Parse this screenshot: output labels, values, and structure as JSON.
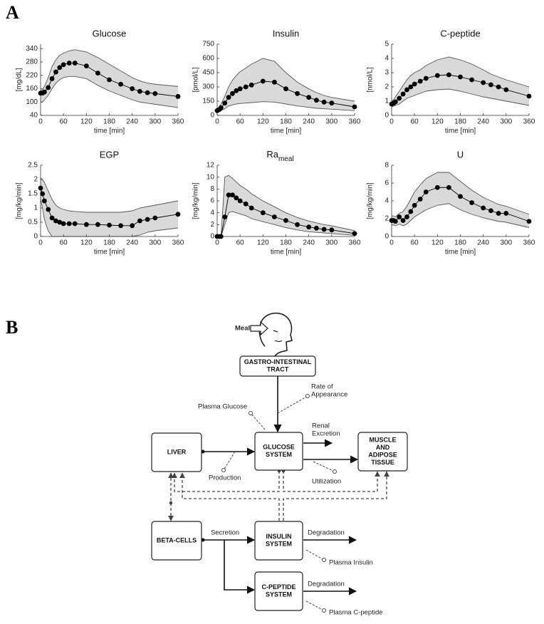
{
  "panel_labels": [
    "A",
    "B"
  ],
  "chart_data": [
    {
      "type": "band-line",
      "title": "Glucose",
      "xlabel": "time [min]",
      "ylabel": "[mg/dL]",
      "x": [
        0,
        5,
        10,
        20,
        30,
        40,
        50,
        60,
        75,
        90,
        120,
        150,
        180,
        210,
        240,
        260,
        280,
        300,
        360
      ],
      "series": [
        {
          "color": "#000000",
          "values": [
            140,
            140,
            145,
            165,
            205,
            235,
            255,
            268,
            275,
            275,
            262,
            230,
            200,
            180,
            160,
            148,
            142,
            138,
            125
          ]
        }
      ],
      "band": {
        "color": "#d9d9d9",
        "edge_color": "#555555",
        "upper": [
          150,
          155,
          170,
          210,
          260,
          290,
          310,
          320,
          330,
          335,
          325,
          300,
          270,
          240,
          210,
          195,
          185,
          180,
          170
        ],
        "lower": [
          100,
          100,
          110,
          130,
          160,
          185,
          200,
          210,
          215,
          215,
          205,
          175,
          150,
          130,
          110,
          100,
          95,
          90,
          75
        ]
      },
      "xlim": [
        0,
        360
      ],
      "xticks": [
        0,
        60,
        120,
        180,
        240,
        300,
        360
      ],
      "ylim": [
        40,
        360
      ],
      "yticks": [
        40,
        100,
        160,
        220,
        280,
        340
      ]
    },
    {
      "type": "band-line",
      "title": "Insulin",
      "xlabel": "time [min]",
      "ylabel": "[pmol/L]",
      "x": [
        0,
        5,
        10,
        20,
        30,
        40,
        50,
        60,
        75,
        90,
        120,
        150,
        180,
        210,
        240,
        260,
        280,
        300,
        360
      ],
      "series": [
        {
          "color": "#000000",
          "values": [
            50,
            60,
            80,
            130,
            190,
            230,
            260,
            280,
            300,
            320,
            360,
            350,
            280,
            230,
            190,
            160,
            140,
            130,
            90
          ]
        }
      ],
      "band": {
        "color": "#d9d9d9",
        "edge_color": "#555555",
        "upper": [
          70,
          90,
          120,
          200,
          300,
          370,
          420,
          460,
          500,
          540,
          600,
          570,
          450,
          350,
          280,
          240,
          210,
          190,
          150
        ],
        "lower": [
          30,
          40,
          50,
          70,
          100,
          110,
          120,
          125,
          130,
          135,
          145,
          140,
          120,
          100,
          85,
          75,
          70,
          65,
          50
        ]
      },
      "xlim": [
        0,
        360
      ],
      "xticks": [
        0,
        60,
        120,
        180,
        240,
        300,
        360
      ],
      "ylim": [
        0,
        750
      ],
      "yticks": [
        0,
        150,
        300,
        450,
        600,
        750
      ]
    },
    {
      "type": "band-line",
      "title": "C-peptide",
      "xlabel": "time [min]",
      "ylabel": "[nmol/L]",
      "x": [
        0,
        5,
        10,
        20,
        30,
        40,
        50,
        60,
        75,
        90,
        120,
        150,
        180,
        210,
        240,
        260,
        280,
        300,
        360
      ],
      "series": [
        {
          "color": "#000000",
          "values": [
            0.8,
            0.85,
            0.95,
            1.2,
            1.5,
            1.8,
            2.0,
            2.2,
            2.4,
            2.6,
            2.8,
            2.85,
            2.7,
            2.5,
            2.3,
            2.15,
            2.0,
            1.8,
            1.35
          ]
        }
      ],
      "band": {
        "color": "#d9d9d9",
        "edge_color": "#555555",
        "upper": [
          1.0,
          1.1,
          1.3,
          1.7,
          2.1,
          2.5,
          2.8,
          3.0,
          3.2,
          3.5,
          3.9,
          4.1,
          3.9,
          3.6,
          3.2,
          2.9,
          2.7,
          2.5,
          2.0
        ],
        "lower": [
          0.6,
          0.65,
          0.7,
          0.8,
          1.0,
          1.2,
          1.3,
          1.4,
          1.55,
          1.7,
          1.8,
          1.85,
          1.7,
          1.5,
          1.3,
          1.2,
          1.1,
          1.0,
          0.7
        ]
      },
      "xlim": [
        0,
        360
      ],
      "xticks": [
        0,
        60,
        120,
        180,
        240,
        300,
        360
      ],
      "ylim": [
        0,
        5
      ],
      "yticks": [
        0,
        1,
        2,
        3,
        4,
        5
      ]
    },
    {
      "type": "band-line",
      "title": "EGP",
      "xlabel": "time [min]",
      "ylabel": "[mg/kg/min]",
      "x": [
        0,
        5,
        10,
        20,
        30,
        40,
        50,
        60,
        75,
        90,
        120,
        150,
        180,
        210,
        240,
        260,
        280,
        300,
        360
      ],
      "series": [
        {
          "color": "#000000",
          "values": [
            1.7,
            1.5,
            1.25,
            0.95,
            0.65,
            0.55,
            0.5,
            0.45,
            0.45,
            0.45,
            0.42,
            0.42,
            0.4,
            0.38,
            0.38,
            0.55,
            0.6,
            0.65,
            0.78
          ]
        }
      ],
      "band": {
        "color": "#d9d9d9",
        "edge_color": "#555555",
        "upper": [
          2.05,
          2.0,
          1.9,
          1.6,
          1.3,
          1.1,
          1.0,
          0.95,
          0.9,
          0.88,
          0.85,
          0.85,
          0.85,
          0.85,
          0.9,
          1.0,
          1.05,
          1.1,
          1.25
        ],
        "lower": [
          1.3,
          1.0,
          0.6,
          0.2,
          0,
          0,
          0,
          0,
          0,
          0,
          0,
          0,
          0,
          0,
          0,
          0.05,
          0.15,
          0.2,
          0.3
        ]
      },
      "xlim": [
        0,
        360
      ],
      "xticks": [
        0,
        60,
        120,
        180,
        240,
        300,
        360
      ],
      "ylim": [
        0,
        2.5
      ],
      "yticks": [
        0,
        0.5,
        1,
        1.5,
        2,
        2.5
      ]
    },
    {
      "type": "band-line",
      "title": "Ra",
      "title_subscript": "meal",
      "xlabel": "time [min]",
      "ylabel": "[mg/kg/min]",
      "x": [
        0,
        5,
        10,
        20,
        30,
        40,
        50,
        60,
        75,
        90,
        120,
        150,
        180,
        210,
        240,
        260,
        280,
        300,
        360
      ],
      "series": [
        {
          "color": "#000000",
          "values": [
            0,
            0,
            0,
            3.3,
            7,
            7,
            6.5,
            6,
            5.5,
            4.8,
            4,
            3.3,
            2.7,
            2,
            1.6,
            1.4,
            1.2,
            1.1,
            0.5
          ]
        }
      ],
      "band": {
        "color": "#d9d9d9",
        "edge_color": "#555555",
        "upper": [
          0,
          0,
          0,
          10,
          10.3,
          9.8,
          9.2,
          8.6,
          8,
          7.2,
          6,
          5,
          4,
          3.2,
          2.6,
          2.3,
          2.0,
          1.8,
          1.0
        ],
        "lower": [
          0,
          0,
          0,
          2,
          4,
          4.2,
          4,
          3.8,
          3.5,
          3,
          2.5,
          2,
          1.5,
          1.1,
          0.8,
          0.7,
          0.6,
          0.5,
          0.2
        ]
      },
      "xlim": [
        0,
        360
      ],
      "xticks": [
        0,
        60,
        120,
        180,
        240,
        300,
        360
      ],
      "ylim": [
        0,
        12
      ],
      "yticks": [
        0,
        2,
        4,
        6,
        8,
        10,
        12
      ]
    },
    {
      "type": "band-line",
      "title": "U",
      "xlabel": "time [min]",
      "ylabel": "[mg/kg/min]",
      "x": [
        0,
        5,
        10,
        20,
        30,
        40,
        50,
        60,
        75,
        90,
        120,
        150,
        180,
        210,
        240,
        260,
        280,
        300,
        360
      ],
      "series": [
        {
          "color": "#000000",
          "values": [
            1.8,
            1.8,
            1.7,
            2.2,
            1.8,
            2.2,
            2.8,
            3.5,
            4.2,
            5,
            5.5,
            5.5,
            4.5,
            3.8,
            3.2,
            2.9,
            2.6,
            2.6,
            1.7
          ]
        }
      ],
      "band": {
        "color": "#d9d9d9",
        "edge_color": "#555555",
        "upper": [
          2.3,
          2.3,
          2.2,
          2.6,
          2.8,
          3.4,
          4.2,
          5,
          5.8,
          6.5,
          7.2,
          7.2,
          6.2,
          5.2,
          4.4,
          4,
          3.6,
          3.4,
          2.5
        ],
        "lower": [
          1.3,
          1.3,
          1.2,
          1.4,
          1.2,
          1.4,
          1.8,
          2.2,
          2.6,
          3,
          3.5,
          3.7,
          3,
          2.5,
          2.1,
          1.9,
          1.7,
          1.6,
          1.0
        ]
      },
      "xlim": [
        0,
        360
      ],
      "xticks": [
        0,
        60,
        120,
        180,
        240,
        300,
        360
      ],
      "ylim": [
        0,
        8
      ],
      "yticks": [
        0,
        2,
        4,
        6,
        8
      ]
    }
  ],
  "diagram": {
    "boxes": [
      [
        "GASTRO-INTESTINAL",
        "TRACT"
      ],
      [
        "LIVER"
      ],
      [
        "GLUCOSE",
        "SYSTEM"
      ],
      [
        "MUSCLE",
        "AND",
        "ADIPOSE",
        "TISSUE"
      ],
      [
        "BETA-CELLS"
      ],
      [
        "INSULIN",
        "SYSTEM"
      ],
      [
        "C-PEPTIDE",
        "SYSTEM"
      ]
    ],
    "labels": [
      [
        "Meal"
      ],
      [
        "Rate of",
        "Appearance"
      ],
      [
        "Plasma Glucose"
      ],
      [
        "Renal",
        "Excretion"
      ],
      [
        "Production"
      ],
      [
        "Utilization"
      ],
      [
        "Secretion"
      ],
      [
        "Degradation"
      ],
      [
        "Plasma Insulin"
      ],
      [
        "Degradation"
      ],
      [
        "Plasma C-peptide"
      ]
    ]
  }
}
